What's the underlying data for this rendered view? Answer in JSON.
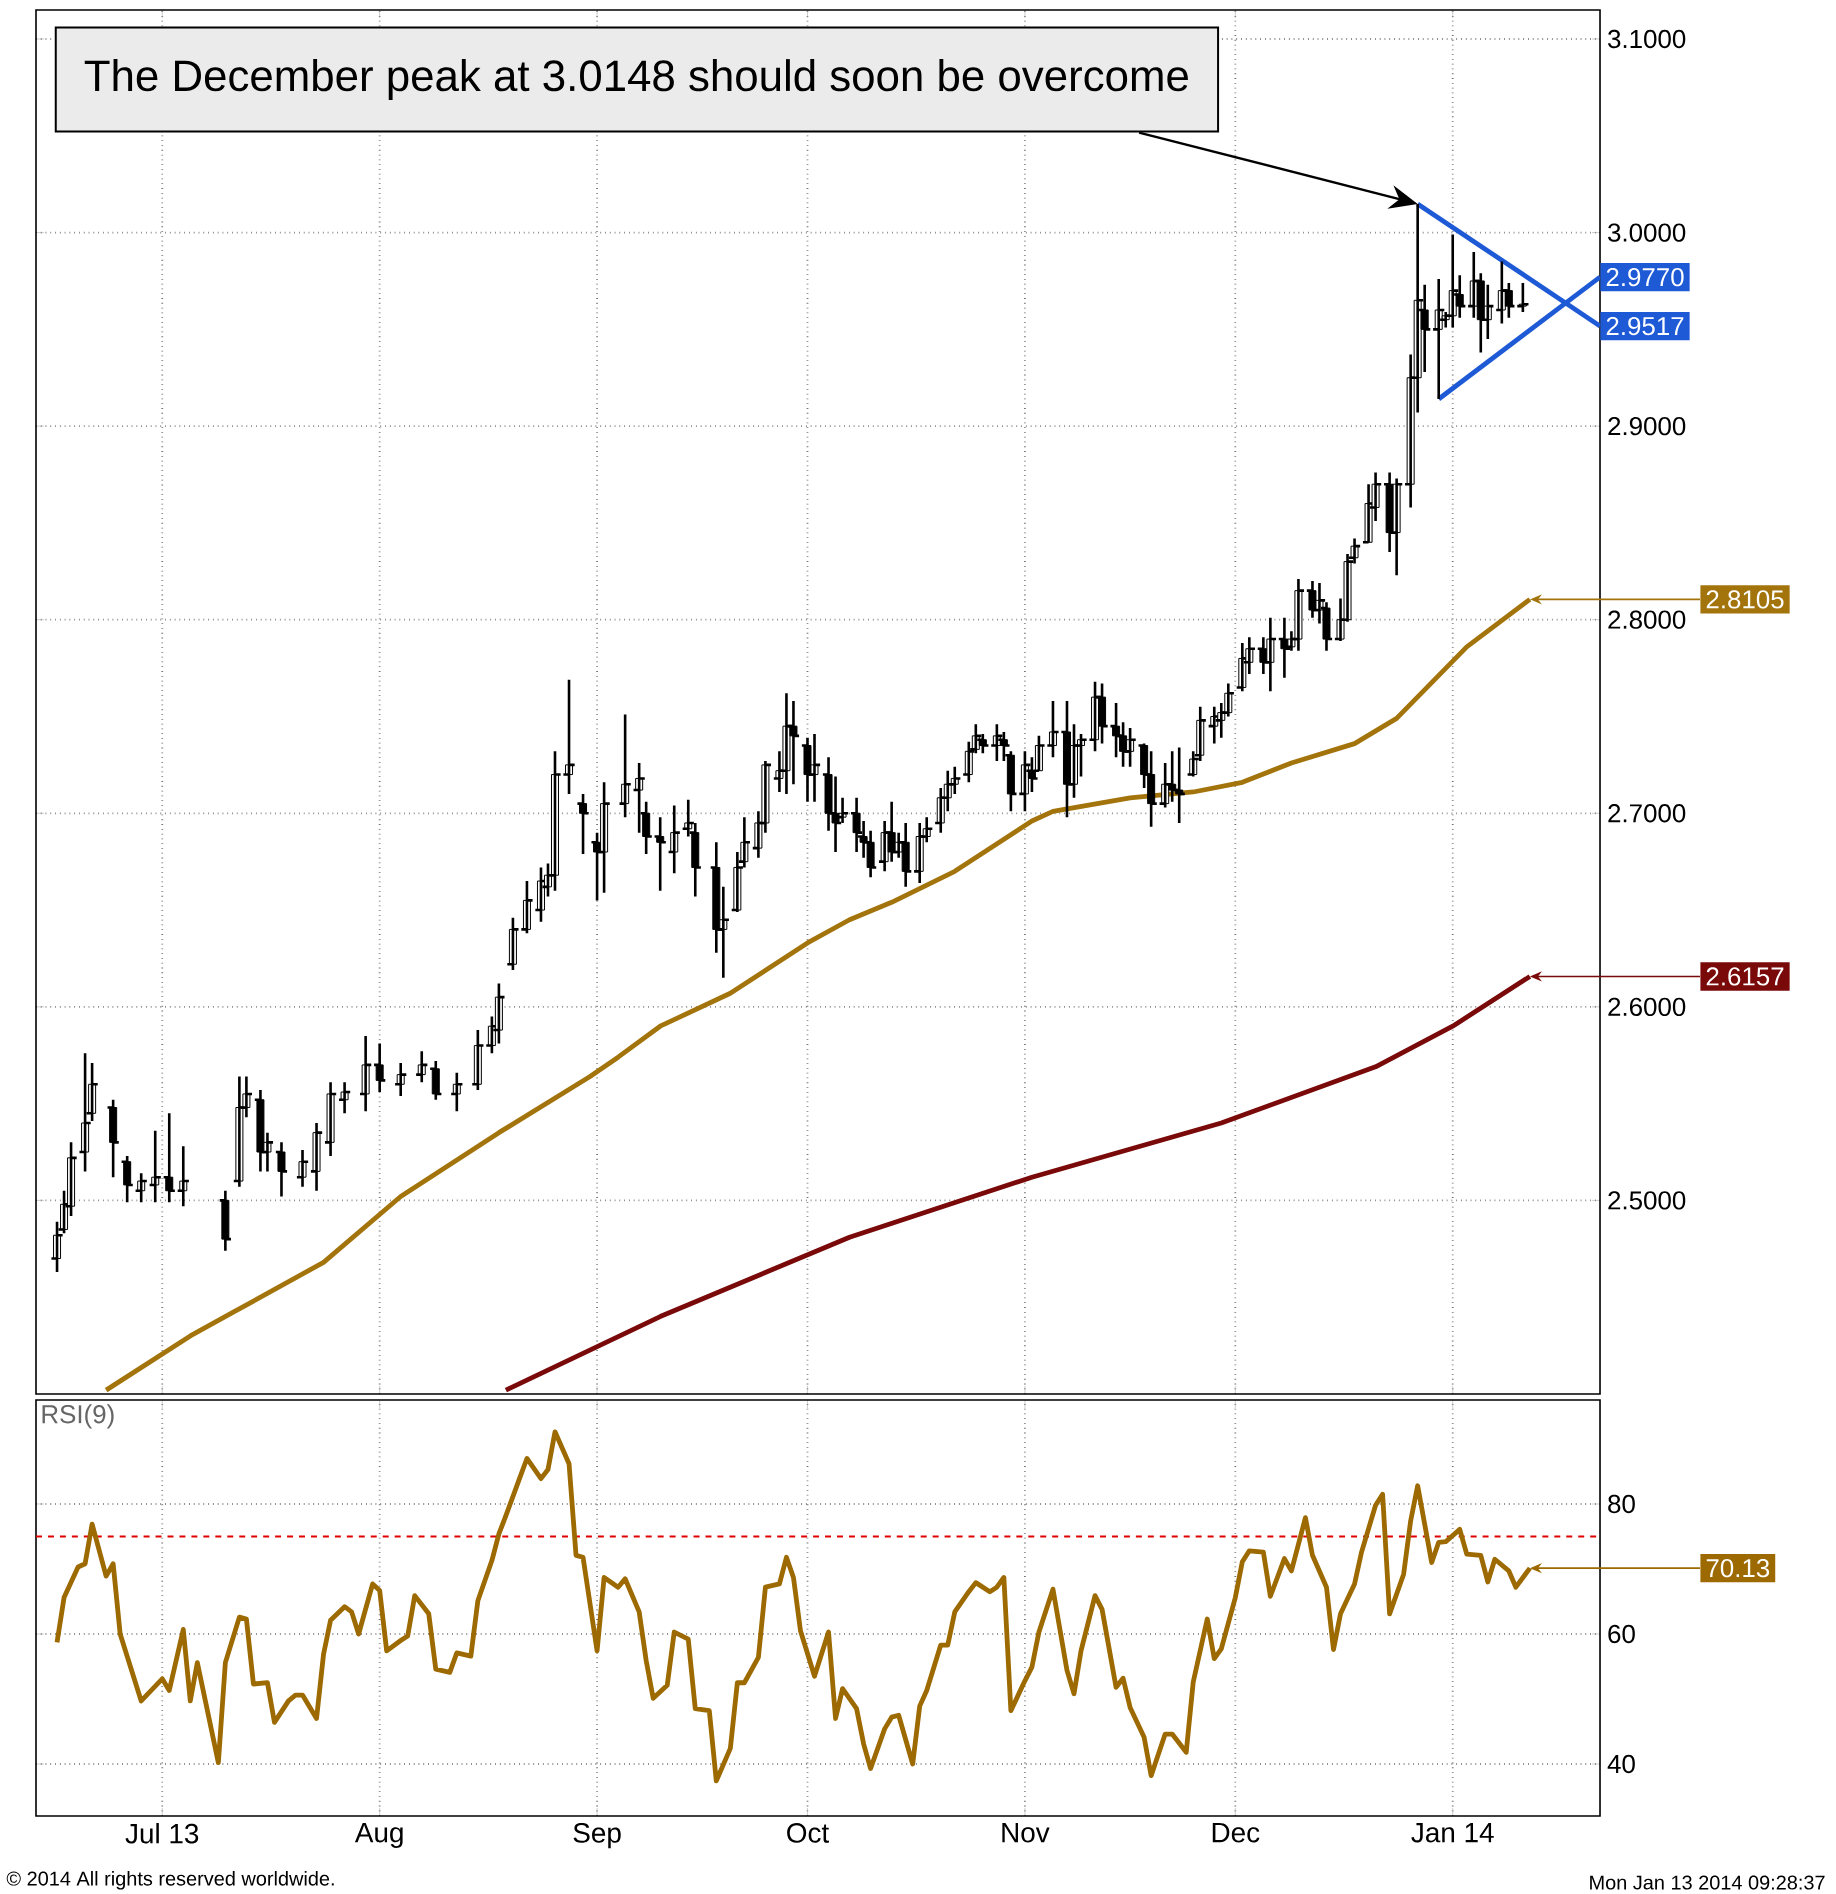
{
  "chart_data": [
    {
      "type": "candlestick",
      "color": "#000000",
      "x": [
        "2013-06-16",
        "2013-06-17",
        "2013-06-18",
        "2013-06-20",
        "2013-06-21",
        "2013-06-24",
        "2013-06-26",
        "2013-06-28",
        "2013-06-30",
        "2013-07-02",
        "2013-07-04",
        "2013-07-10",
        "2013-07-12",
        "2013-07-13",
        "2013-07-15",
        "2013-07-16",
        "2013-07-18",
        "2013-07-21",
        "2013-07-23",
        "2013-07-25",
        "2013-07-27",
        "2013-07-30",
        "2013-08-01",
        "2013-08-04",
        "2013-08-07",
        "2013-08-09",
        "2013-08-12",
        "2013-08-15",
        "2013-08-17",
        "2013-08-18",
        "2013-08-20",
        "2013-08-22",
        "2013-08-24",
        "2013-08-25",
        "2013-08-26",
        "2013-08-28",
        "2013-08-30",
        "2013-09-01",
        "2013-09-02",
        "2013-09-05",
        "2013-09-07",
        "2013-09-08",
        "2013-09-10",
        "2013-09-12",
        "2013-09-14",
        "2013-09-15",
        "2013-09-18",
        "2013-09-19",
        "2013-09-21",
        "2013-09-22",
        "2013-09-24",
        "2013-09-25",
        "2013-09-27",
        "2013-09-28",
        "2013-09-29",
        "2013-10-01",
        "2013-10-02",
        "2013-10-04",
        "2013-10-05",
        "2013-10-06",
        "2013-10-08",
        "2013-10-09",
        "2013-10-10",
        "2013-10-12",
        "2013-10-13",
        "2013-10-14",
        "2013-10-15",
        "2013-10-17",
        "2013-10-18",
        "2013-10-20",
        "2013-10-21",
        "2013-10-22",
        "2013-10-24",
        "2013-10-25",
        "2013-10-26",
        "2013-10-28",
        "2013-10-29",
        "2013-10-30",
        "2013-11-01",
        "2013-11-02",
        "2013-11-03",
        "2013-11-05",
        "2013-11-07",
        "2013-11-08",
        "2013-11-09",
        "2013-11-11",
        "2013-11-12",
        "2013-11-14",
        "2013-11-15",
        "2013-11-16",
        "2013-11-18",
        "2013-11-19",
        "2013-11-21",
        "2013-11-22",
        "2013-11-23",
        "2013-11-25",
        "2013-11-26",
        "2013-11-28",
        "2013-11-29",
        "2013-11-30",
        "2013-12-02",
        "2013-12-03",
        "2013-12-05",
        "2013-12-06",
        "2013-12-08",
        "2013-12-09",
        "2013-12-10",
        "2013-12-12",
        "2013-12-13",
        "2013-12-14",
        "2013-12-16",
        "2013-12-17",
        "2013-12-18",
        "2013-12-20",
        "2013-12-21",
        "2013-12-23",
        "2013-12-24",
        "2013-12-26",
        "2013-12-27",
        "2013-12-28",
        "2013-12-30",
        "2013-12-31",
        "2014-01-01",
        "2014-01-02",
        "2014-01-04",
        "2014-01-05",
        "2014-01-06",
        "2014-01-08",
        "2014-01-09",
        "2014-01-11"
      ],
      "ohlc": [
        [
          2.47,
          2.489,
          2.463,
          2.482
        ],
        [
          2.485,
          2.505,
          2.483,
          2.498
        ],
        [
          2.497,
          2.53,
          2.492,
          2.522
        ],
        [
          2.525,
          2.576,
          2.515,
          2.54
        ],
        [
          2.545,
          2.571,
          2.541,
          2.56
        ],
        [
          2.548,
          2.552,
          2.512,
          2.53
        ],
        [
          2.52,
          2.523,
          2.499,
          2.508
        ],
        [
          2.505,
          2.514,
          2.499,
          2.51
        ],
        [
          2.508,
          2.536,
          2.499,
          2.512
        ],
        [
          2.512,
          2.545,
          2.499,
          2.505
        ],
        [
          2.505,
          2.528,
          2.497,
          2.51
        ],
        [
          2.5,
          2.505,
          2.474,
          2.48
        ],
        [
          2.51,
          2.564,
          2.507,
          2.548
        ],
        [
          2.548,
          2.564,
          2.543,
          2.555
        ],
        [
          2.552,
          2.557,
          2.515,
          2.525
        ],
        [
          2.525,
          2.535,
          2.515,
          2.53
        ],
        [
          2.525,
          2.53,
          2.502,
          2.515
        ],
        [
          2.512,
          2.526,
          2.507,
          2.52
        ],
        [
          2.515,
          2.54,
          2.505,
          2.535
        ],
        [
          2.53,
          2.561,
          2.523,
          2.555
        ],
        [
          2.552,
          2.561,
          2.545,
          2.556
        ],
        [
          2.555,
          2.585,
          2.546,
          2.57
        ],
        [
          2.57,
          2.581,
          2.556,
          2.562
        ],
        [
          2.56,
          2.571,
          2.554,
          2.565
        ],
        [
          2.565,
          2.577,
          2.561,
          2.57
        ],
        [
          2.568,
          2.572,
          2.552,
          2.555
        ],
        [
          2.555,
          2.566,
          2.546,
          2.56
        ],
        [
          2.56,
          2.588,
          2.557,
          2.58
        ],
        [
          2.58,
          2.595,
          2.576,
          2.59
        ],
        [
          2.588,
          2.612,
          2.581,
          2.605
        ],
        [
          2.622,
          2.646,
          2.619,
          2.64
        ],
        [
          2.64,
          2.665,
          2.638,
          2.655
        ],
        [
          2.65,
          2.672,
          2.644,
          2.665
        ],
        [
          2.662,
          2.674,
          2.657,
          2.668
        ],
        [
          2.668,
          2.732,
          2.66,
          2.72
        ],
        [
          2.72,
          2.769,
          2.71,
          2.725
        ],
        [
          2.705,
          2.71,
          2.679,
          2.7
        ],
        [
          2.685,
          2.69,
          2.655,
          2.68
        ],
        [
          2.68,
          2.716,
          2.659,
          2.705
        ],
        [
          2.705,
          2.751,
          2.698,
          2.715
        ],
        [
          2.712,
          2.726,
          2.69,
          2.718
        ],
        [
          2.7,
          2.706,
          2.679,
          2.688
        ],
        [
          2.688,
          2.698,
          2.66,
          2.685
        ],
        [
          2.68,
          2.704,
          2.669,
          2.69
        ],
        [
          2.692,
          2.707,
          2.688,
          2.695
        ],
        [
          2.69,
          2.695,
          2.657,
          2.672
        ],
        [
          2.672,
          2.685,
          2.628,
          2.64
        ],
        [
          2.64,
          2.662,
          2.615,
          2.645
        ],
        [
          2.65,
          2.68,
          2.649,
          2.672
        ],
        [
          2.675,
          2.698,
          2.672,
          2.685
        ],
        [
          2.682,
          2.701,
          2.677,
          2.695
        ],
        [
          2.695,
          2.727,
          2.69,
          2.725
        ],
        [
          2.718,
          2.732,
          2.711,
          2.722
        ],
        [
          2.722,
          2.762,
          2.71,
          2.745
        ],
        [
          2.745,
          2.758,
          2.715,
          2.74
        ],
        [
          2.735,
          2.739,
          2.706,
          2.72
        ],
        [
          2.72,
          2.741,
          2.706,
          2.725
        ],
        [
          2.72,
          2.729,
          2.691,
          2.7
        ],
        [
          2.7,
          2.719,
          2.68,
          2.695
        ],
        [
          2.698,
          2.708,
          2.695,
          2.7
        ],
        [
          2.7,
          2.708,
          2.68,
          2.69
        ],
        [
          2.688,
          2.696,
          2.677,
          2.685
        ],
        [
          2.685,
          2.691,
          2.667,
          2.672
        ],
        [
          2.675,
          2.696,
          2.67,
          2.69
        ],
        [
          2.69,
          2.706,
          2.675,
          2.68
        ],
        [
          2.68,
          2.69,
          2.677,
          2.685
        ],
        [
          2.685,
          2.695,
          2.662,
          2.67
        ],
        [
          2.67,
          2.695,
          2.664,
          2.688
        ],
        [
          2.688,
          2.698,
          2.685,
          2.692
        ],
        [
          2.695,
          2.713,
          2.69,
          2.708
        ],
        [
          2.708,
          2.722,
          2.701,
          2.715
        ],
        [
          2.715,
          2.724,
          2.71,
          2.718
        ],
        [
          2.72,
          2.737,
          2.716,
          2.732
        ],
        [
          2.733,
          2.746,
          2.731,
          2.74
        ],
        [
          2.738,
          2.741,
          2.731,
          2.735
        ],
        [
          2.735,
          2.746,
          2.727,
          2.74
        ],
        [
          2.738,
          2.742,
          2.727,
          2.735
        ],
        [
          2.73,
          2.732,
          2.701,
          2.71
        ],
        [
          2.71,
          2.732,
          2.701,
          2.725
        ],
        [
          2.722,
          2.729,
          2.711,
          2.718
        ],
        [
          2.722,
          2.74,
          2.722,
          2.735
        ],
        [
          2.735,
          2.758,
          2.729,
          2.742
        ],
        [
          2.742,
          2.758,
          2.698,
          2.715
        ],
        [
          2.715,
          2.746,
          2.708,
          2.735
        ],
        [
          2.735,
          2.741,
          2.719,
          2.738
        ],
        [
          2.738,
          2.768,
          2.732,
          2.76
        ],
        [
          2.76,
          2.767,
          2.736,
          2.745
        ],
        [
          2.745,
          2.757,
          2.729,
          2.74
        ],
        [
          2.74,
          2.747,
          2.724,
          2.732
        ],
        [
          2.732,
          2.744,
          2.724,
          2.738
        ],
        [
          2.735,
          2.736,
          2.713,
          2.72
        ],
        [
          2.72,
          2.732,
          2.693,
          2.705
        ],
        [
          2.705,
          2.726,
          2.703,
          2.715
        ],
        [
          2.715,
          2.732,
          2.706,
          2.712
        ],
        [
          2.712,
          2.734,
          2.695,
          2.71
        ],
        [
          2.72,
          2.732,
          2.719,
          2.728
        ],
        [
          2.73,
          2.755,
          2.727,
          2.748
        ],
        [
          2.745,
          2.755,
          2.736,
          2.75
        ],
        [
          2.748,
          2.757,
          2.739,
          2.752
        ],
        [
          2.752,
          2.767,
          2.75,
          2.762
        ],
        [
          2.765,
          2.788,
          2.763,
          2.78
        ],
        [
          2.778,
          2.791,
          2.772,
          2.785
        ],
        [
          2.785,
          2.791,
          2.772,
          2.778
        ],
        [
          2.778,
          2.801,
          2.763,
          2.79
        ],
        [
          2.79,
          2.801,
          2.77,
          2.785
        ],
        [
          2.786,
          2.794,
          2.784,
          2.79
        ],
        [
          2.79,
          2.821,
          2.784,
          2.815
        ],
        [
          2.815,
          2.82,
          2.801,
          2.805
        ],
        [
          2.805,
          2.819,
          2.798,
          2.81
        ],
        [
          2.806,
          2.809,
          2.784,
          2.79
        ],
        [
          2.79,
          2.811,
          2.789,
          2.8
        ],
        [
          2.8,
          2.834,
          2.799,
          2.83
        ],
        [
          2.832,
          2.842,
          2.829,
          2.838
        ],
        [
          2.84,
          2.87,
          2.84,
          2.86
        ],
        [
          2.858,
          2.876,
          2.851,
          2.87
        ],
        [
          2.87,
          2.876,
          2.835,
          2.845
        ],
        [
          2.845,
          2.873,
          2.823,
          2.87
        ],
        [
          2.87,
          2.937,
          2.858,
          2.925
        ],
        [
          2.925,
          3.0148,
          2.907,
          2.965
        ],
        [
          2.96,
          2.973,
          2.928,
          2.95
        ],
        [
          2.95,
          2.976,
          2.914,
          2.96
        ],
        [
          2.955,
          2.959,
          2.951,
          2.957
        ],
        [
          2.957,
          2.999,
          2.951,
          2.97
        ],
        [
          2.968,
          2.978,
          2.956,
          2.962
        ],
        [
          2.962,
          2.99,
          2.956,
          2.975
        ],
        [
          2.975,
          2.979,
          2.938,
          2.955
        ],
        [
          2.955,
          2.973,
          2.945,
          2.962
        ],
        [
          2.96,
          2.985,
          2.953,
          2.97
        ],
        [
          2.97,
          2.974,
          2.956,
          2.962
        ],
        [
          2.962,
          2.974,
          2.959,
          2.963
        ]
      ],
      "series": [
        {
          "type": "line",
          "color": "#a3740c",
          "x": [
            "2013-06-23",
            "2013-07-05",
            "2013-07-11",
            "2013-07-24",
            "2013-08-04",
            "2013-08-18",
            "2013-08-31",
            "2013-09-04",
            "2013-09-10",
            "2013-09-20",
            "2013-10-01",
            "2013-10-07",
            "2013-10-13",
            "2013-10-22",
            "2013-11-02",
            "2013-11-05",
            "2013-11-16",
            "2013-11-25",
            "2013-12-02",
            "2013-12-09",
            "2013-12-18",
            "2013-12-24",
            "2014-01-03",
            "2014-01-12"
          ],
          "values": [
            2.402,
            2.43,
            2.442,
            2.468,
            2.502,
            2.535,
            2.564,
            2.574,
            2.59,
            2.607,
            2.633,
            2.645,
            2.654,
            2.67,
            2.696,
            2.701,
            2.708,
            2.711,
            2.716,
            2.726,
            2.736,
            2.749,
            2.786,
            2.8105
          ]
        },
        {
          "type": "line",
          "color": "#7a0a0a",
          "x": [
            "2013-08-19",
            "2013-09-10",
            "2013-10-07",
            "2013-11-02",
            "2013-11-29",
            "2013-12-21",
            "2014-01-01",
            "2014-01-12"
          ],
          "values": [
            2.402,
            2.44,
            2.481,
            2.512,
            2.54,
            2.569,
            2.59,
            2.6157
          ]
        },
        {
          "type": "line",
          "color": "#1e5ad6",
          "x": [
            "2013-12-27",
            "2014-01-22"
          ],
          "values": [
            3.0148,
            2.9517
          ]
        },
        {
          "type": "line",
          "color": "#1e5ad6",
          "x": [
            "2013-12-30",
            "2014-01-22"
          ],
          "values": [
            2.914,
            2.977
          ]
        }
      ],
      "xlim": [
        "2013-06-13",
        "2014-01-22"
      ],
      "ylim": [
        2.4,
        3.115
      ],
      "xticks": [
        {
          "value": "2013-07-01",
          "label": null
        },
        {
          "value": "2013-08-01",
          "label": null
        },
        {
          "value": "2013-09-01",
          "label": null
        },
        {
          "value": "2013-10-01",
          "label": null
        },
        {
          "value": "2013-11-01",
          "label": null
        },
        {
          "value": "2013-12-01",
          "label": null
        },
        {
          "value": "2014-01-01",
          "label": null
        }
      ],
      "yticks": [
        {
          "value": 2.5,
          "label": "2.5000"
        },
        {
          "value": 2.6,
          "label": "2.6000"
        },
        {
          "value": 2.7,
          "label": "2.7000"
        },
        {
          "value": 2.8,
          "label": "2.8000"
        },
        {
          "value": 2.9,
          "label": "2.9000"
        },
        {
          "value": 3.0,
          "label": "3.0000"
        },
        {
          "value": 3.1,
          "label": "3.1000"
        }
      ],
      "grid": true,
      "tick_labels": "y",
      "annotations": [
        {
          "text": "The December peak at 3.0148 should soon be overcome",
          "x": "2013-12-27",
          "y": 3.0148
        },
        {
          "text": "2.9770",
          "x": "2014-01-22",
          "y": 2.977
        },
        {
          "text": "2.9517",
          "x": "2014-01-22",
          "y": 2.9517
        },
        {
          "text": "2.8105",
          "x": "2014-01-12",
          "y": 2.8105
        },
        {
          "text": "2.6157",
          "x": "2014-01-12",
          "y": 2.6157
        }
      ]
    },
    {
      "type": "line",
      "title": "RSI(9)",
      "series": [
        {
          "color": "#9c6a00",
          "x": [
            "2013-06-16",
            "2013-06-17",
            "2013-06-19",
            "2013-06-20",
            "2013-06-21",
            "2013-06-23",
            "2013-06-24",
            "2013-06-25",
            "2013-06-28",
            "2013-07-01",
            "2013-07-02",
            "2013-07-04",
            "2013-07-05",
            "2013-07-06",
            "2013-07-09",
            "2013-07-10",
            "2013-07-12",
            "2013-07-13",
            "2013-07-14",
            "2013-07-16",
            "2013-07-17",
            "2013-07-19",
            "2013-07-20",
            "2013-07-21",
            "2013-07-23",
            "2013-07-24",
            "2013-07-25",
            "2013-07-27",
            "2013-07-28",
            "2013-07-29",
            "2013-07-31",
            "2013-08-01",
            "2013-08-02",
            "2013-08-04",
            "2013-08-05",
            "2013-08-06",
            "2013-08-08",
            "2013-08-09",
            "2013-08-11",
            "2013-08-12",
            "2013-08-14",
            "2013-08-15",
            "2013-08-17",
            "2013-08-18",
            "2013-08-19",
            "2013-08-21",
            "2013-08-22",
            "2013-08-24",
            "2013-08-25",
            "2013-08-26",
            "2013-08-28",
            "2013-08-29",
            "2013-08-30",
            "2013-09-01",
            "2013-09-02",
            "2013-09-04",
            "2013-09-05",
            "2013-09-07",
            "2013-09-08",
            "2013-09-09",
            "2013-09-11",
            "2013-09-12",
            "2013-09-14",
            "2013-09-15",
            "2013-09-17",
            "2013-09-18",
            "2013-09-20",
            "2013-09-21",
            "2013-09-22",
            "2013-09-24",
            "2013-09-25",
            "2013-09-27",
            "2013-09-28",
            "2013-09-29",
            "2013-09-30",
            "2013-10-02",
            "2013-10-04",
            "2013-10-05",
            "2013-10-06",
            "2013-10-08",
            "2013-10-09",
            "2013-10-10",
            "2013-10-12",
            "2013-10-13",
            "2013-10-14",
            "2013-10-16",
            "2013-10-17",
            "2013-10-18",
            "2013-10-20",
            "2013-10-21",
            "2013-10-22",
            "2013-10-24",
            "2013-10-25",
            "2013-10-27",
            "2013-10-28",
            "2013-10-29",
            "2013-10-30",
            "2013-11-01",
            "2013-11-02",
            "2013-11-03",
            "2013-11-05",
            "2013-11-07",
            "2013-11-08",
            "2013-11-09",
            "2013-11-11",
            "2013-11-12",
            "2013-11-14",
            "2013-11-15",
            "2013-11-16",
            "2013-11-18",
            "2013-11-19",
            "2013-11-21",
            "2013-11-22",
            "2013-11-24",
            "2013-11-25",
            "2013-11-27",
            "2013-11-28",
            "2013-11-29",
            "2013-12-01",
            "2013-12-02",
            "2013-12-03",
            "2013-12-05",
            "2013-12-06",
            "2013-12-08",
            "2013-12-09",
            "2013-12-11",
            "2013-12-12",
            "2013-12-14",
            "2013-12-15",
            "2013-12-16",
            "2013-12-18",
            "2013-12-19",
            "2013-12-21",
            "2013-12-22",
            "2013-12-23",
            "2013-12-25",
            "2013-12-26",
            "2013-12-27",
            "2013-12-29",
            "2013-12-30",
            "2013-12-31",
            "2014-01-02",
            "2014-01-03",
            "2014-01-05",
            "2014-01-06",
            "2014-01-07",
            "2014-01-09",
            "2014-01-10",
            "2014-01-12"
          ],
          "values": [
            58.7,
            65.6,
            70.3,
            70.8,
            76.9,
            68.9,
            70.8,
            60.0,
            49.7,
            53.1,
            51.3,
            60.7,
            49.7,
            55.6,
            40.2,
            55.6,
            62.6,
            62.3,
            52.3,
            52.5,
            46.4,
            49.7,
            50.6,
            50.6,
            47.0,
            56.9,
            62.1,
            64.2,
            63.4,
            60.0,
            67.7,
            66.7,
            57.4,
            59.0,
            59.7,
            65.9,
            63.1,
            54.6,
            54.1,
            57.1,
            56.6,
            65.1,
            71.3,
            75.4,
            78.2,
            84.1,
            87.0,
            83.9,
            85.3,
            91.1,
            86.2,
            72.1,
            71.8,
            57.4,
            68.7,
            67.2,
            68.5,
            63.4,
            55.9,
            50.1,
            52.1,
            60.3,
            59.2,
            48.5,
            48.2,
            37.4,
            42.4,
            52.5,
            52.5,
            56.4,
            67.2,
            67.7,
            71.8,
            68.7,
            60.5,
            53.5,
            60.3,
            47.0,
            51.6,
            48.5,
            43.1,
            39.3,
            45.4,
            47.2,
            47.5,
            40.0,
            48.9,
            51.3,
            58.3,
            58.3,
            63.4,
            66.5,
            67.9,
            66.5,
            67.2,
            68.7,
            48.2,
            52.8,
            54.9,
            60.3,
            66.9,
            54.4,
            50.8,
            57.4,
            65.9,
            63.8,
            51.8,
            53.2,
            48.7,
            44.1,
            38.2,
            44.6,
            44.6,
            41.8,
            52.6,
            62.3,
            56.2,
            57.7,
            65.6,
            71.1,
            72.8,
            72.6,
            65.8,
            71.6,
            69.7,
            77.9,
            72.1,
            67.2,
            57.6,
            63.1,
            67.7,
            72.6,
            79.8,
            81.5,
            63.1,
            69.2,
            77.4,
            82.8,
            71.0,
            74.1,
            74.2,
            76.1,
            72.3,
            72.1,
            68.0,
            71.5,
            69.7,
            67.2,
            70.13
          ]
        }
      ],
      "xlim": [
        "2013-06-13",
        "2014-01-22"
      ],
      "ylim": [
        32,
        96
      ],
      "xticks": [
        {
          "value": "2013-07-01",
          "label": "Jul 13"
        },
        {
          "value": "2013-08-01",
          "label": "Aug"
        },
        {
          "value": "2013-09-01",
          "label": "Sep"
        },
        {
          "value": "2013-10-01",
          "label": "Oct"
        },
        {
          "value": "2013-11-01",
          "label": "Nov"
        },
        {
          "value": "2013-12-01",
          "label": "Dec"
        },
        {
          "value": "2014-01-01",
          "label": "Jan 14"
        }
      ],
      "yticks": [
        40,
        60,
        80
      ],
      "grid": true,
      "ref_lines": [
        {
          "axis": "y",
          "value": 75,
          "color": "#e00000",
          "line_style": "dashed"
        }
      ],
      "annotations": [
        {
          "text": "70.13",
          "x": "2014-01-12",
          "y": 70.13
        },
        "© 2014 All rights reserved worldwide.",
        "Mon Jan 13 2014 09:28:37"
      ]
    }
  ]
}
